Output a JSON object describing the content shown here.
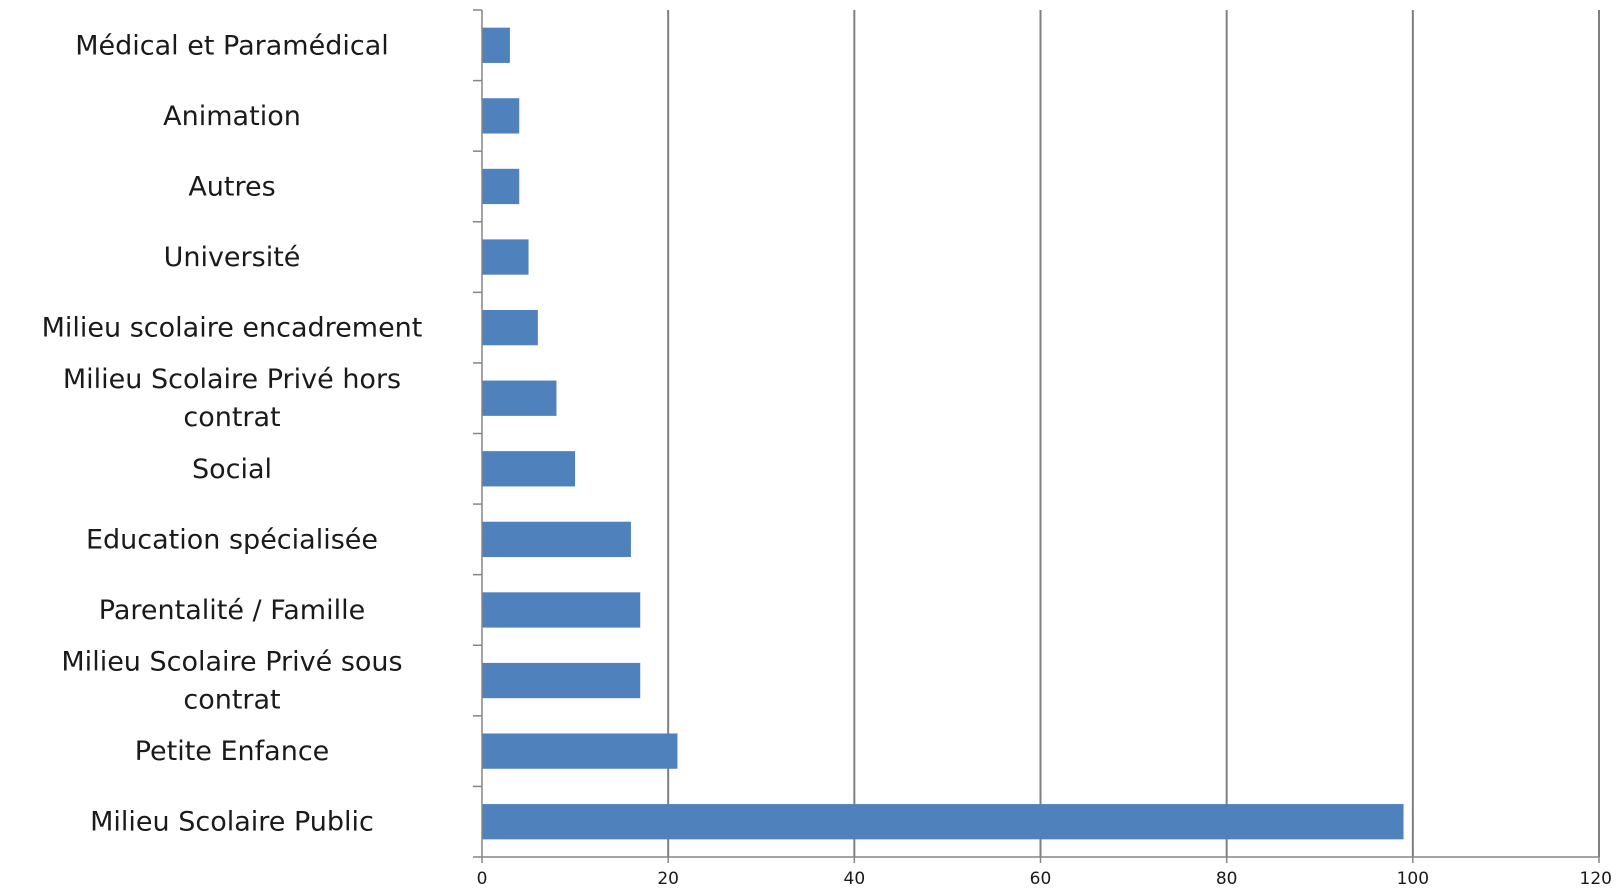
{
  "chart_data": {
    "type": "bar",
    "orientation": "horizontal",
    "title": "",
    "xlabel": "",
    "ylabel": "",
    "categories": [
      "Médical et Paramédical",
      "Animation",
      "Autres",
      "Université",
      "Milieu scolaire encadrement",
      "Milieu Scolaire Privé hors contrat",
      "Social",
      "Education spécialisée",
      "Parentalité / Famille",
      "Milieu Scolaire Privé sous contrat",
      "Petite Enfance",
      "Milieu Scolaire Public"
    ],
    "category_lines": [
      [
        "Médical et Paramédical"
      ],
      [
        "Animation"
      ],
      [
        "Autres"
      ],
      [
        "Université"
      ],
      [
        "Milieu scolaire encadrement"
      ],
      [
        "Milieu Scolaire Privé hors",
        "contrat"
      ],
      [
        "Social"
      ],
      [
        "Education spécialisée"
      ],
      [
        "Parentalité / Famille"
      ],
      [
        "Milieu Scolaire Privé sous",
        "contrat"
      ],
      [
        "Petite Enfance"
      ],
      [
        "Milieu Scolaire Public"
      ]
    ],
    "values": [
      3,
      4,
      4,
      5,
      6,
      8,
      10,
      16,
      17,
      17,
      21,
      99
    ],
    "xlim": [
      0,
      120
    ],
    "xticks": [
      "0",
      "20",
      "40",
      "60",
      "80",
      "100",
      "120"
    ],
    "grid": true,
    "legend": "none",
    "bar_color": "#4f81bd",
    "grid_color": "#7f7f7f",
    "axis_color": "#868686"
  }
}
